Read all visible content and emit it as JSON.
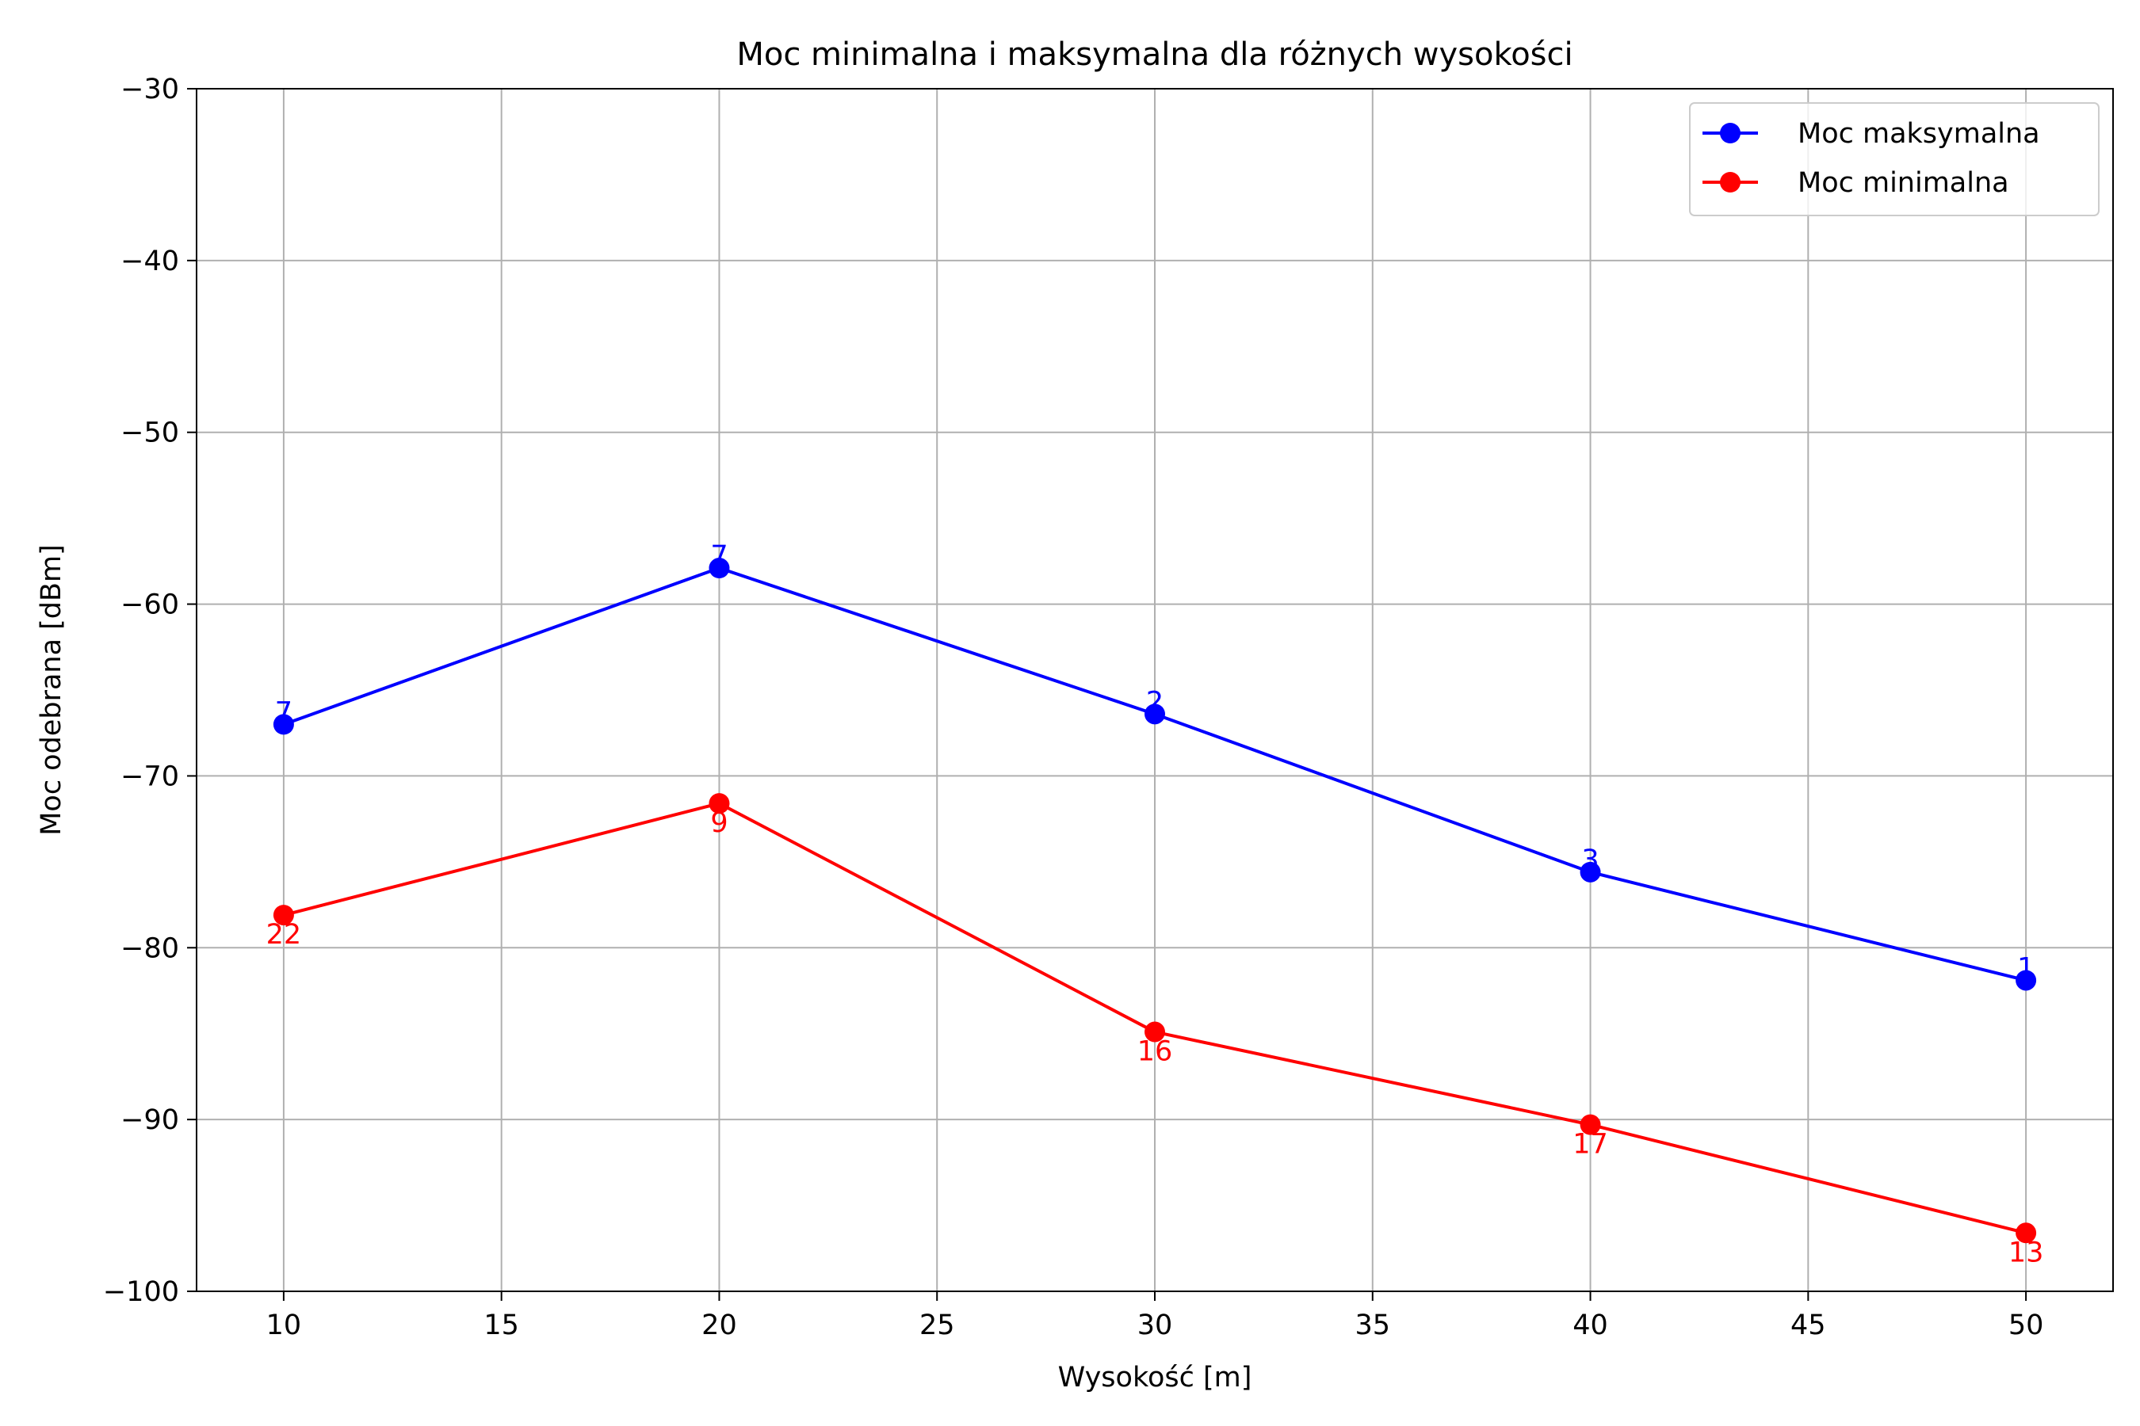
{
  "chart_data": {
    "type": "line",
    "title": "Moc minimalna i maksymalna dla różnych wysokości",
    "xlabel": "Wysokość [m]",
    "ylabel": "Moc odebrana [dBm]",
    "xlim": [
      8,
      52
    ],
    "ylim": [
      -100,
      -30
    ],
    "xticks": [
      10,
      15,
      20,
      25,
      30,
      35,
      40,
      45,
      50
    ],
    "yticks": [
      -100,
      -90,
      -80,
      -70,
      -60,
      -50,
      -40,
      -30
    ],
    "xtick_labels": [
      "10",
      "15",
      "20",
      "25",
      "30",
      "35",
      "40",
      "45",
      "50"
    ],
    "ytick_labels": [
      "−100",
      "−90",
      "−80",
      "−70",
      "−60",
      "−50",
      "−40",
      "−30"
    ],
    "grid": true,
    "legend_position": "top-right",
    "x": [
      10,
      20,
      30,
      40,
      50
    ],
    "series": [
      {
        "name": "Moc maksymalna",
        "color": "#0000ff",
        "values": [
          -67.0,
          -57.9,
          -66.4,
          -75.6,
          -81.9
        ],
        "point_labels": [
          "7",
          "7",
          "2",
          "3",
          "1"
        ],
        "label_placement": "above"
      },
      {
        "name": "Moc minimalna",
        "color": "#ff0000",
        "values": [
          -78.1,
          -71.6,
          -84.9,
          -90.3,
          -96.6
        ],
        "point_labels": [
          "22",
          "9",
          "16",
          "17",
          "13"
        ],
        "label_placement": "below"
      }
    ]
  }
}
